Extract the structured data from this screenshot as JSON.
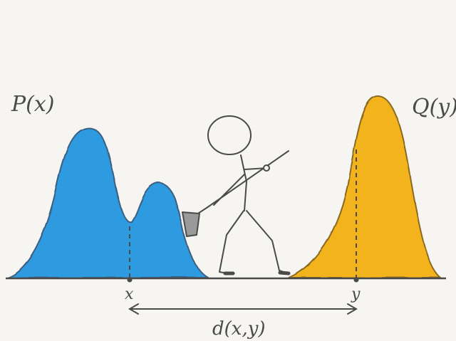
{
  "labels": {
    "p": "P(x)",
    "q": "Q(y)",
    "x": "x",
    "y": "y",
    "distance": "d(x,y)"
  },
  "colors": {
    "p_fill": "#2f9be0",
    "q_fill": "#f3b31a",
    "ink": "#4a4a4a",
    "background": "#f6f5f2"
  },
  "icons": {
    "figure": "stick-figure-with-shovel-icon"
  }
}
